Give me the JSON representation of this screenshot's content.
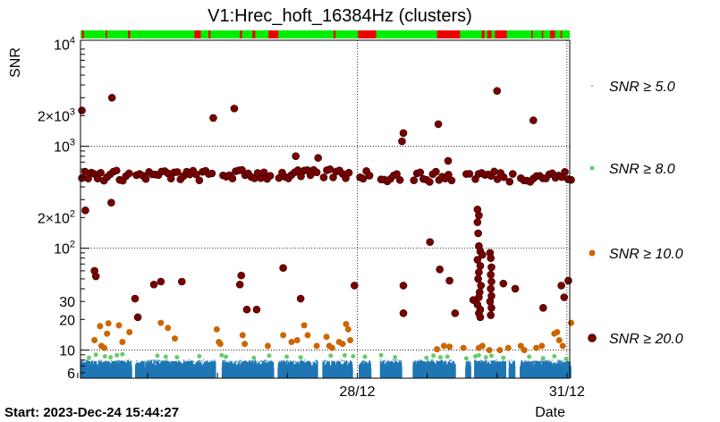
{
  "chart_data": {
    "type": "scatter",
    "title": "V1:Hrec_hoft_16384Hz (clusters)",
    "ylabel": "SNR",
    "xlabel": "Date",
    "yscale": "log",
    "ylim": [
      5.3,
      11000
    ],
    "xlim": [
      0,
      7.0
    ],
    "x_units": "days since 2023-Dec-24 00:00",
    "yticks": [
      {
        "v": 6,
        "label": "6"
      },
      {
        "v": 10,
        "label": "10"
      },
      {
        "v": 20,
        "label": "20"
      },
      {
        "v": 30,
        "label": "30"
      },
      {
        "v": 100,
        "label": "10",
        "sup": "2"
      },
      {
        "v": 200,
        "label": "2×10",
        "sup": "2"
      },
      {
        "v": 1000,
        "label": "10",
        "sup": "3"
      },
      {
        "v": 2000,
        "label": "2×10",
        "sup": "3"
      },
      {
        "v": 10000,
        "label": "10",
        "sup": "4"
      }
    ],
    "xticks": [
      {
        "v": 3.96,
        "label": "28/12"
      },
      {
        "v": 6.96,
        "label": "31/12"
      }
    ],
    "start_label": "Start: 2023-Dec-24 15:44:27",
    "status_bar": {
      "ok_color": "#00ee00",
      "bad_color": "#ee0000",
      "bad_segments": [
        [
          0.02,
          0.05
        ],
        [
          0.36,
          0.38
        ],
        [
          0.68,
          0.71
        ],
        [
          1.63,
          1.72
        ],
        [
          1.83,
          1.86
        ],
        [
          2.28,
          2.31
        ],
        [
          2.46,
          2.5
        ],
        [
          2.69,
          2.83
        ],
        [
          3.62,
          3.65
        ],
        [
          3.97,
          4.01
        ],
        [
          4.01,
          4.23
        ],
        [
          5.1,
          5.43
        ],
        [
          5.74,
          5.78
        ],
        [
          5.82,
          5.88
        ],
        [
          5.93,
          6.1
        ],
        [
          6.45,
          6.47
        ],
        [
          6.6,
          6.62
        ],
        [
          6.72,
          6.79
        ],
        [
          6.87,
          6.88
        ]
      ]
    },
    "gaps": [
      [
        0.72,
        0.78
      ],
      [
        1.92,
        2.02
      ],
      [
        2.75,
        2.82
      ],
      [
        3.38,
        3.46
      ],
      [
        3.88,
        3.98
      ],
      [
        4.14,
        4.28
      ],
      [
        4.58,
        4.75
      ],
      [
        5.35,
        5.5
      ],
      [
        5.57,
        5.63
      ],
      [
        6.07,
        6.12
      ],
      [
        6.2,
        6.28
      ]
    ],
    "legend": [
      {
        "threshold": "5.0",
        "color": "#1f77b4",
        "label": "SNR ≥ 5.0"
      },
      {
        "threshold": "8.0",
        "color": "#66cc66",
        "label": "SNR ≥ 8.0"
      },
      {
        "threshold": "10.0",
        "color": "#cc6600",
        "label": "SNR ≥ 10.0"
      },
      {
        "threshold": "20.0",
        "color": "#7a0000",
        "label": "SNR ≥ 20.0"
      }
    ],
    "series": [
      {
        "name": "SNR ≥ 5.0",
        "color": "#1f77b4",
        "description": "dense band of clusters between SNR 5 and 8"
      },
      {
        "name": "SNR ≥ 8.0",
        "color": "#66cc66",
        "points": [
          [
            0.12,
            8.4
          ],
          [
            0.22,
            9.0
          ],
          [
            0.35,
            8.7
          ],
          [
            0.43,
            8.5
          ],
          [
            0.52,
            8.9
          ],
          [
            0.6,
            9.1
          ],
          [
            1.1,
            8.8
          ],
          [
            1.22,
            8.6
          ],
          [
            1.38,
            8.5
          ],
          [
            1.7,
            8.7
          ],
          [
            2.02,
            8.9
          ],
          [
            2.08,
            8.6
          ],
          [
            2.48,
            8.4
          ],
          [
            2.7,
            8.8
          ],
          [
            2.95,
            8.6
          ],
          [
            3.15,
            8.5
          ],
          [
            3.58,
            8.8
          ],
          [
            3.78,
            8.9
          ],
          [
            3.9,
            8.7
          ],
          [
            4.07,
            8.6
          ],
          [
            4.3,
            8.9
          ],
          [
            4.5,
            8.5
          ],
          [
            4.95,
            8.4
          ],
          [
            5.05,
            8.8
          ],
          [
            5.15,
            8.5
          ],
          [
            5.25,
            8.6
          ],
          [
            5.52,
            8.3
          ],
          [
            5.65,
            8.7
          ],
          [
            5.7,
            8.9
          ],
          [
            5.8,
            8.5
          ],
          [
            5.88,
            8.8
          ],
          [
            6.05,
            8.4
          ],
          [
            6.42,
            8.6
          ],
          [
            6.62,
            8.3
          ],
          [
            6.78,
            8.7
          ],
          [
            6.95,
            8.2
          ]
        ]
      },
      {
        "name": "SNR ≥ 10.0",
        "color": "#cc6600",
        "points": [
          [
            0.2,
            12.5
          ],
          [
            0.28,
            17.2
          ],
          [
            0.3,
            11.0
          ],
          [
            0.34,
            10.5
          ],
          [
            0.38,
            14.5
          ],
          [
            0.4,
            18.3
          ],
          [
            0.55,
            17.5
          ],
          [
            0.6,
            12.0
          ],
          [
            0.7,
            15.0
          ],
          [
            1.15,
            18.5
          ],
          [
            1.25,
            16.5
          ],
          [
            1.35,
            13.0
          ],
          [
            1.95,
            16.0
          ],
          [
            1.98,
            12.0
          ],
          [
            2.0,
            11.5
          ],
          [
            2.32,
            14.0
          ],
          [
            2.35,
            11.5
          ],
          [
            2.68,
            11.0
          ],
          [
            2.9,
            14.0
          ],
          [
            3.02,
            12.0
          ],
          [
            3.1,
            12.5
          ],
          [
            3.2,
            17.5
          ],
          [
            3.25,
            14.0
          ],
          [
            3.38,
            11.0
          ],
          [
            3.52,
            13.5
          ],
          [
            3.56,
            11.0
          ],
          [
            3.6,
            10.5
          ],
          [
            3.7,
            12.0
          ],
          [
            3.75,
            11.5
          ],
          [
            3.8,
            18.0
          ],
          [
            3.83,
            16.0
          ],
          [
            3.86,
            12.5
          ],
          [
            5.1,
            10.2
          ],
          [
            5.2,
            11.0
          ],
          [
            5.28,
            10.8
          ],
          [
            5.48,
            10.5
          ],
          [
            5.7,
            10.5
          ],
          [
            5.75,
            11.0
          ],
          [
            5.85,
            10.0
          ],
          [
            6.0,
            10.0
          ],
          [
            6.12,
            10.5
          ],
          [
            6.3,
            11.0
          ],
          [
            6.35,
            10.0
          ],
          [
            6.52,
            10.5
          ],
          [
            6.6,
            11.0
          ],
          [
            6.78,
            14.5
          ],
          [
            6.82,
            15.0
          ],
          [
            6.85,
            12.5
          ],
          [
            6.9,
            11.0
          ],
          [
            7.02,
            18.5
          ]
        ]
      },
      {
        "name": "SNR ≥ 20.0",
        "color": "#7a0000",
        "points": [
          [
            0.02,
            2250
          ],
          [
            0.07,
            235
          ],
          [
            0.2,
            60
          ],
          [
            0.22,
            53
          ],
          [
            0.45,
            3000
          ],
          [
            0.44,
            280
          ],
          [
            0.78,
            32
          ],
          [
            0.82,
            21
          ],
          [
            1.05,
            44
          ],
          [
            1.15,
            47
          ],
          [
            1.45,
            47
          ],
          [
            1.9,
            1900
          ],
          [
            2.2,
            2350
          ],
          [
            2.3,
            54
          ],
          [
            2.28,
            44
          ],
          [
            2.38,
            25
          ],
          [
            2.52,
            25
          ],
          [
            2.9,
            64
          ],
          [
            3.08,
            800
          ],
          [
            3.15,
            32
          ],
          [
            3.4,
            770
          ],
          [
            3.92,
            43
          ],
          [
            4.62,
            1350
          ],
          [
            4.6,
            1120
          ],
          [
            4.62,
            43
          ],
          [
            4.62,
            23
          ],
          [
            5.0,
            115
          ],
          [
            5.12,
            1650
          ],
          [
            5.14,
            62
          ],
          [
            5.26,
            720
          ],
          [
            5.28,
            48
          ],
          [
            5.36,
            23
          ],
          [
            5.62,
            31
          ],
          [
            5.68,
            240
          ],
          [
            5.7,
            210
          ],
          [
            5.68,
            180
          ],
          [
            5.69,
            140
          ],
          [
            5.7,
            105
          ],
          [
            5.72,
            93
          ],
          [
            5.75,
            86
          ],
          [
            5.68,
            77
          ],
          [
            5.72,
            67
          ],
          [
            5.7,
            58
          ],
          [
            5.69,
            50
          ],
          [
            5.73,
            43
          ],
          [
            5.71,
            37
          ],
          [
            5.7,
            33
          ],
          [
            5.68,
            28
          ],
          [
            5.72,
            25
          ],
          [
            5.7,
            23
          ],
          [
            5.72,
            21
          ],
          [
            5.86,
            90
          ],
          [
            5.87,
            80
          ],
          [
            5.88,
            65
          ],
          [
            5.87,
            55
          ],
          [
            5.88,
            47
          ],
          [
            5.87,
            40
          ],
          [
            5.88,
            34
          ],
          [
            5.86,
            30
          ],
          [
            5.88,
            26
          ],
          [
            5.87,
            22
          ],
          [
            5.96,
            3500
          ],
          [
            6.05,
            45
          ],
          [
            6.22,
            40
          ],
          [
            6.48,
            1800
          ],
          [
            6.62,
            26
          ],
          [
            6.88,
            43
          ],
          [
            6.92,
            33
          ],
          [
            6.98,
            48
          ]
        ]
      },
      {
        "name": "SNR ≥ 20.0 band",
        "color": "#7a0000",
        "description": "continuous band of clusters near SNR 440-600",
        "segments": [
          [
            0.0,
            0.72,
            520
          ],
          [
            0.78,
            1.92,
            520
          ],
          [
            2.02,
            2.75,
            530
          ],
          [
            2.82,
            3.38,
            525
          ],
          [
            3.46,
            3.88,
            540
          ],
          [
            3.98,
            4.14,
            530
          ],
          [
            4.28,
            4.58,
            510
          ],
          [
            4.75,
            5.35,
            505
          ],
          [
            5.5,
            5.57,
            520
          ],
          [
            5.63,
            6.07,
            520
          ],
          [
            6.12,
            6.2,
            505
          ],
          [
            6.28,
            7.02,
            510
          ]
        ]
      }
    ]
  }
}
